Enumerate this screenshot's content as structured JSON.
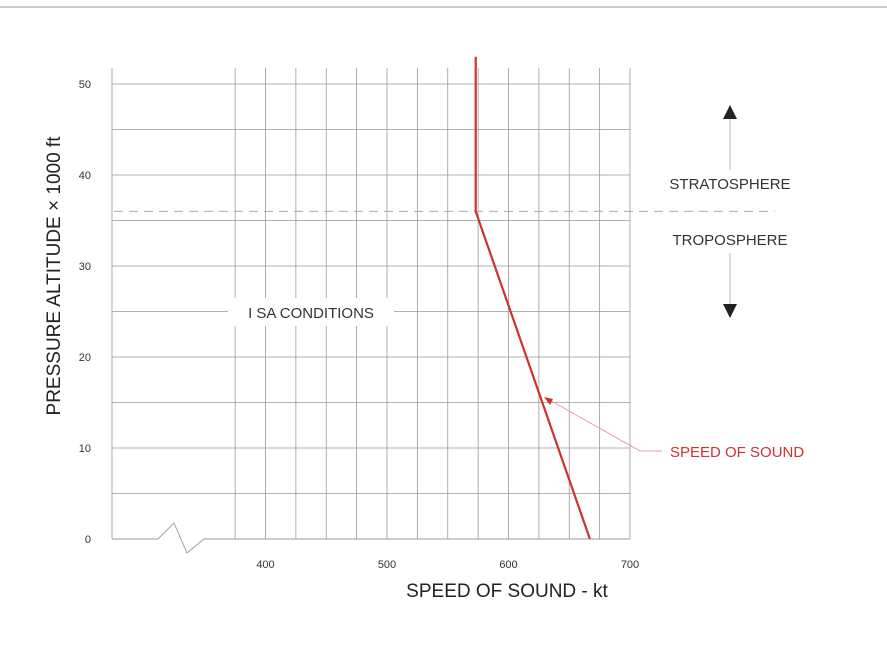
{
  "chart_data": {
    "type": "line",
    "xlabel": "SPEED OF SOUND  -  kt",
    "ylabel": "PRESSURE  ALTITUDE  × 1000 ft",
    "xlim": [
      300,
      700
    ],
    "ylim": [
      0,
      53
    ],
    "x_ticks": [
      400,
      500,
      600,
      700
    ],
    "y_ticks": [
      0,
      10,
      20,
      30,
      40,
      50
    ],
    "x_grid_step": 25,
    "y_grid_step": 5,
    "grid": true,
    "axis_break": true,
    "series": [
      {
        "name": "SPEED OF SOUND",
        "color": "#cc3333",
        "x": [
          667,
          573,
          573
        ],
        "y": [
          0,
          36,
          53
        ]
      }
    ],
    "tropopause_altitude": 36,
    "annotations": {
      "isa": "I SA  CONDITIONS",
      "stratosphere": "STRATOSPHERE",
      "troposphere": "TROPOSPHERE",
      "series_label": "SPEED  OF  SOUND"
    }
  }
}
